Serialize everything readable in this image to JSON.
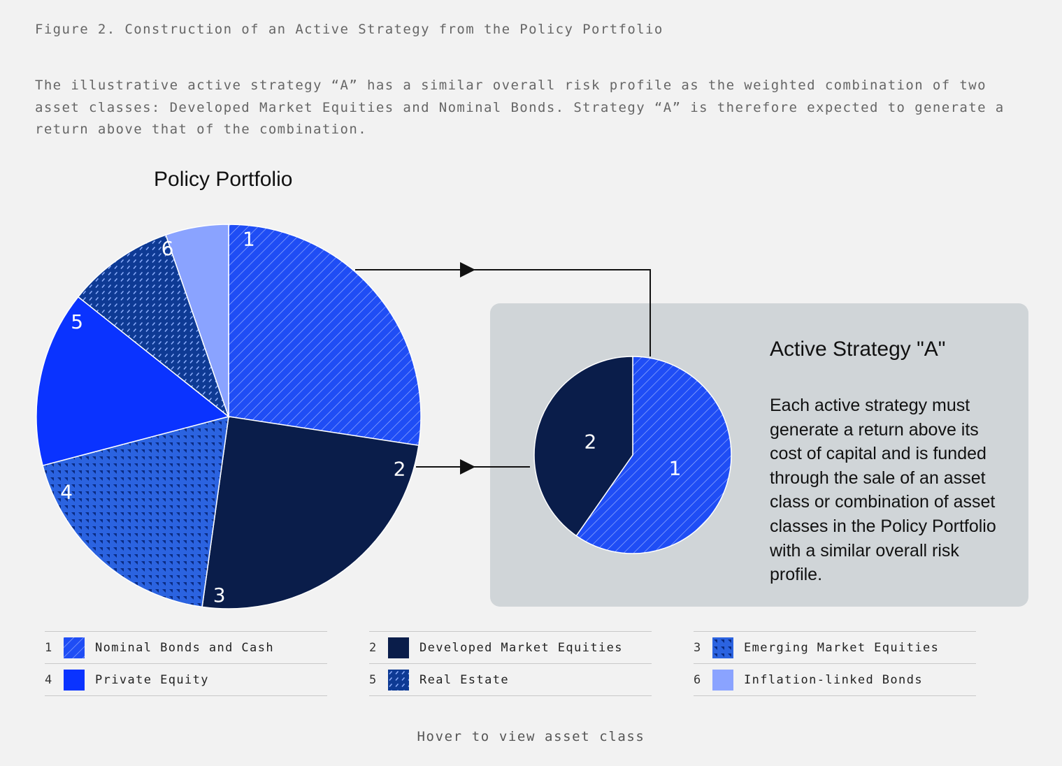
{
  "header": {
    "figure_title": "Figure 2. Construction of an Active Strategy from the Policy Portfolio",
    "intro": "The illustrative active strategy “A” has a similar overall risk profile as the weighted combination of two asset classes: Developed Market Equities and Nominal Bonds. Strategy “A” is therefore expected to generate a return above that of the combination."
  },
  "panel": {
    "title": "Active Strategy \"A\"",
    "text": "Each active strategy must generate a return above its cost of capital and is funded through the sale of an asset class or combination of asset classes in the Policy Portfolio with a similar overall risk profile."
  },
  "legend": [
    {
      "num": "1",
      "label": "Nominal Bonds and Cash",
      "pattern": "diagonal-stripes",
      "color": "#1f4df5"
    },
    {
      "num": "2",
      "label": "Developed Market Equities",
      "pattern": "solid",
      "color": "#0a1d4a"
    },
    {
      "num": "3",
      "label": "Emerging Market Equities",
      "pattern": "triangles",
      "color": "#2b63e0"
    },
    {
      "num": "4",
      "label": "Private Equity",
      "pattern": "solid",
      "color": "#0a33ff"
    },
    {
      "num": "5",
      "label": "Real Estate",
      "pattern": "dashed-diagonal",
      "color": "#0e3a94"
    },
    {
      "num": "6",
      "label": "Inflation-linked Bonds",
      "pattern": "solid",
      "color": "#8aa3ff"
    }
  ],
  "hint": "Hover to view asset class",
  "chart_data": [
    {
      "type": "pie",
      "title": "Policy Portfolio",
      "categories": [
        "1",
        "2",
        "3",
        "4",
        "5",
        "6"
      ],
      "values": [
        27.4,
        24.8,
        18.7,
        14.8,
        9.0,
        5.3
      ],
      "unit": "%"
    },
    {
      "type": "pie",
      "title": "Active Strategy \"A\"",
      "categories": [
        "1",
        "2"
      ],
      "values": [
        59.7,
        40.3
      ],
      "unit": "%"
    }
  ]
}
